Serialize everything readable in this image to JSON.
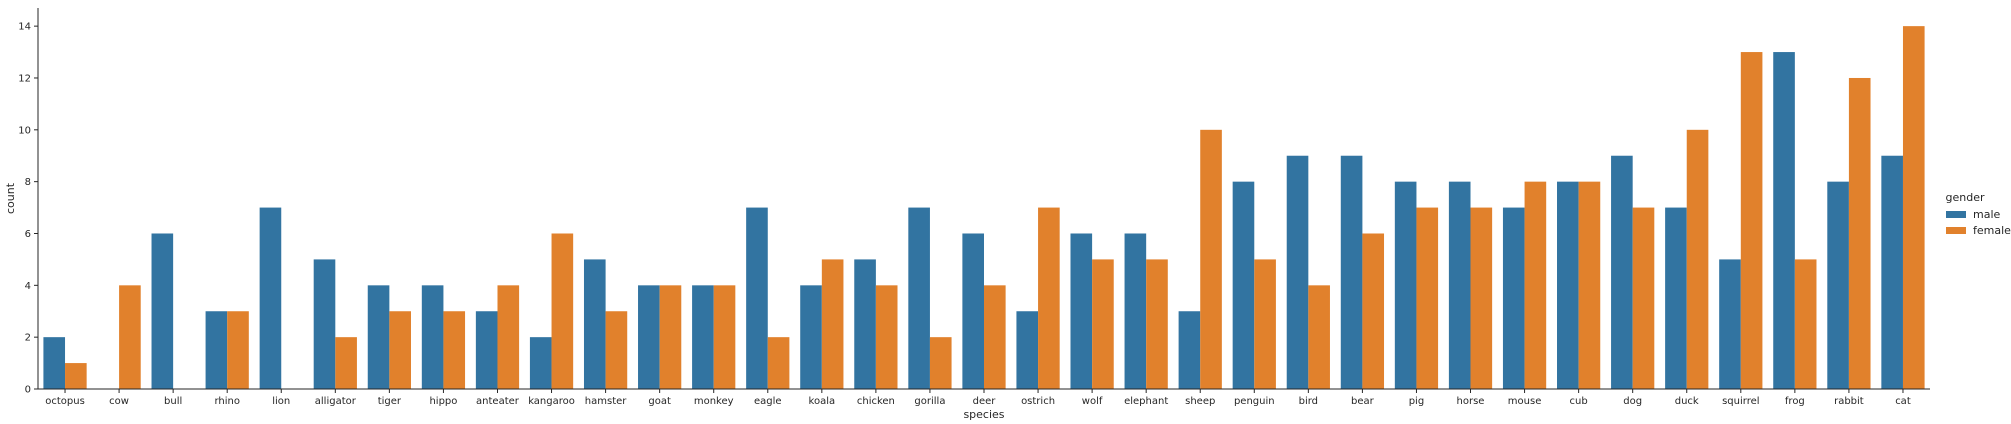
{
  "chart_data": {
    "type": "bar",
    "xlabel": "species",
    "ylabel": "count",
    "ylim": [
      0,
      14.7
    ],
    "yticks": [
      0,
      2,
      4,
      6,
      8,
      10,
      12,
      14
    ],
    "grid": false,
    "legend": {
      "title": "gender",
      "placement": "right"
    },
    "categories": [
      "octopus",
      "cow",
      "bull",
      "rhino",
      "lion",
      "alligator",
      "tiger",
      "hippo",
      "anteater",
      "kangaroo",
      "hamster",
      "goat",
      "monkey",
      "eagle",
      "koala",
      "chicken",
      "gorilla",
      "deer",
      "ostrich",
      "wolf",
      "elephant",
      "sheep",
      "penguin",
      "bird",
      "bear",
      "pig",
      "horse",
      "mouse",
      "cub",
      "dog",
      "duck",
      "squirrel",
      "frog",
      "rabbit",
      "cat"
    ],
    "series": [
      {
        "name": "male",
        "color": "#3274a1",
        "values": [
          2,
          0,
          6,
          3,
          7,
          5,
          4,
          4,
          3,
          2,
          5,
          4,
          4,
          7,
          4,
          5,
          7,
          6,
          3,
          6,
          6,
          3,
          8,
          9,
          9,
          8,
          8,
          7,
          8,
          9,
          7,
          5,
          13,
          8,
          9
        ]
      },
      {
        "name": "female",
        "color": "#e1812c",
        "values": [
          1,
          4,
          0,
          3,
          0,
          2,
          3,
          3,
          4,
          6,
          3,
          4,
          4,
          2,
          5,
          4,
          2,
          4,
          7,
          5,
          5,
          10,
          5,
          4,
          6,
          7,
          7,
          8,
          8,
          7,
          10,
          13,
          5,
          12,
          14
        ]
      }
    ]
  }
}
